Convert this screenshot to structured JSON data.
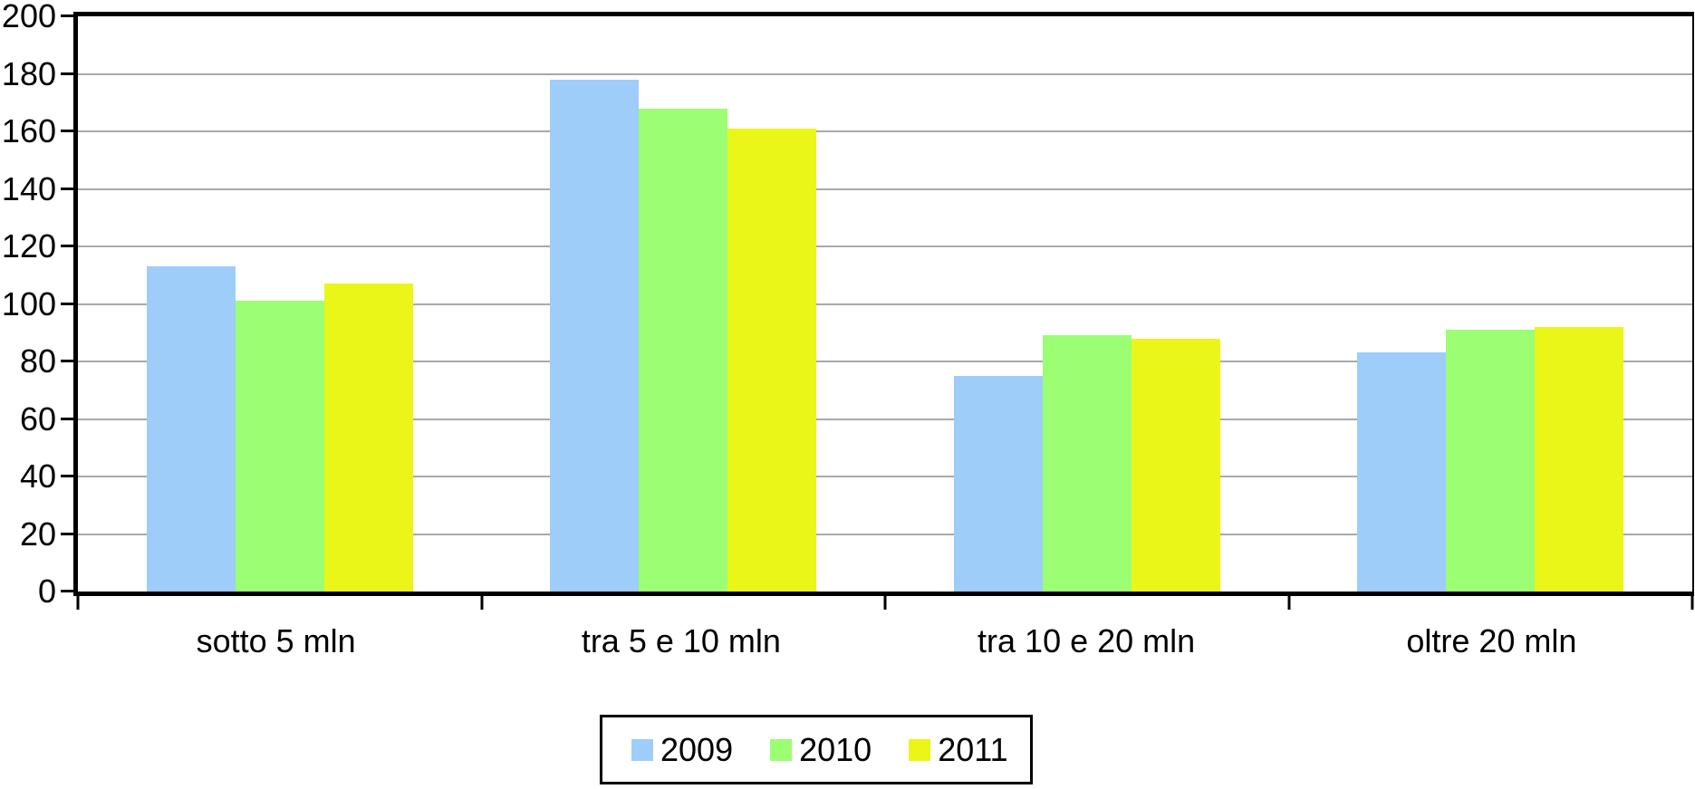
{
  "chart_data": {
    "type": "bar",
    "title": "",
    "categories": [
      "sotto 5 mln",
      "tra 5 e 10 mln",
      "tra 10 e 20 mln",
      "oltre 20 mln"
    ],
    "series": [
      {
        "name": "2009",
        "color": "#9ECDFA",
        "values": [
          113,
          178,
          75,
          83
        ]
      },
      {
        "name": "2010",
        "color": "#9BFE73",
        "values": [
          101,
          168,
          89,
          91
        ]
      },
      {
        "name": "2011",
        "color": "#E9F617",
        "values": [
          107,
          161,
          88,
          92
        ]
      }
    ],
    "ylim": [
      0,
      200
    ],
    "yticks": [
      0,
      20,
      40,
      60,
      80,
      100,
      120,
      140,
      160,
      180,
      200
    ],
    "ytick_labels": [
      "0",
      "20",
      "40",
      "60",
      "80",
      "100",
      "120",
      "140",
      "160",
      "180",
      "200"
    ],
    "xlabel": "",
    "ylabel": "",
    "grid": true,
    "gridline_color": "#A9A9A9",
    "axis_color": "#000000",
    "background_color": "#FFFFFF",
    "legend_position": "bottom-center",
    "legend_labels": [
      "2009",
      "2010",
      "2011"
    ]
  }
}
